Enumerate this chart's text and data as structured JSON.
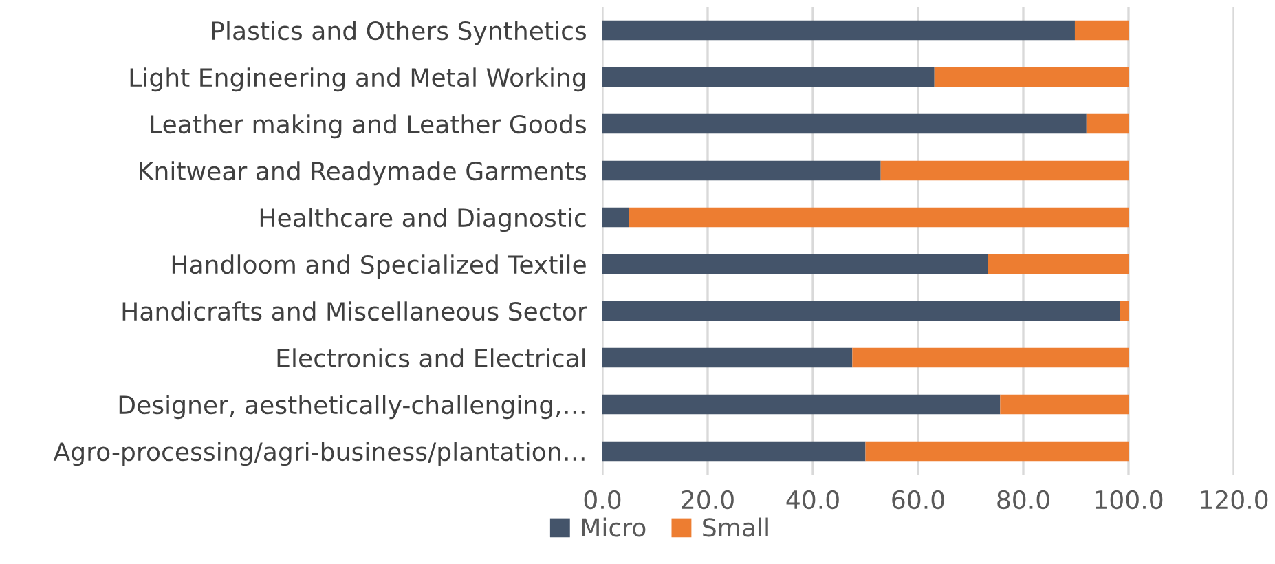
{
  "chart_data": {
    "type": "bar",
    "orientation": "horizontal",
    "stacked": true,
    "categories": [
      "Plastics and Others Synthetics",
      "Light Engineering and Metal Working",
      "Leather making and Leather Goods",
      "Knitwear and Readymade Garments",
      "Healthcare and Diagnostic",
      "Handloom and Specialized Textile",
      "Handicrafts and Miscellaneous Sector",
      "Electronics and Electrical",
      "Designer, aesthetically-challenging,…",
      "Agro-processing/agri-business/plantation…"
    ],
    "series": [
      {
        "name": "Micro",
        "color": "#44546a",
        "values": [
          89.8,
          63.1,
          92.0,
          52.9,
          5.1,
          73.3,
          98.4,
          47.5,
          75.6,
          50.0
        ]
      },
      {
        "name": "Small",
        "color": "#ed7d31",
        "values": [
          10.2,
          36.9,
          8.0,
          47.1,
          94.9,
          26.7,
          1.6,
          52.5,
          24.4,
          50.0
        ]
      }
    ],
    "xlim": [
      0,
      120
    ],
    "xticks": [
      {
        "value": 0,
        "label": "0.0"
      },
      {
        "value": 20,
        "label": "20.0"
      },
      {
        "value": 40,
        "label": "40.0"
      },
      {
        "value": 60,
        "label": "60.0"
      },
      {
        "value": 80,
        "label": "80.0"
      },
      {
        "value": 100,
        "label": "100.0"
      },
      {
        "value": 120,
        "label": "120.0"
      }
    ],
    "grid": "x",
    "legend": "bottom"
  }
}
